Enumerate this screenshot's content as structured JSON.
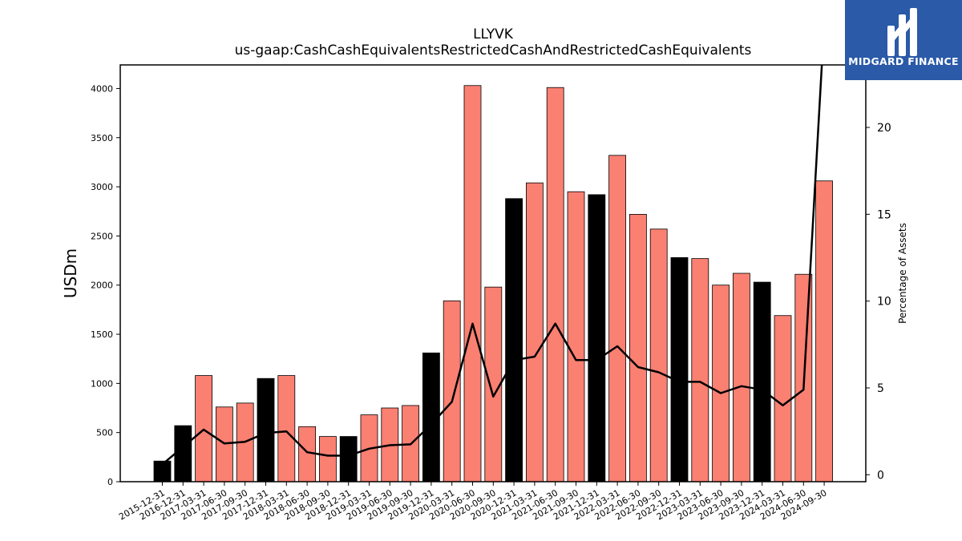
{
  "chart_data": {
    "type": "bar",
    "title": "LLYVK",
    "subtitle": "us-gaap:CashCashEquivalentsRestrictedCashAndRestrictedCashEquivalents",
    "ylabel": "USDm",
    "y2label": "Percentage of Assets",
    "ylim": [
      0,
      4240
    ],
    "y2lim": [
      -0.4,
      23.6
    ],
    "yticks": [
      0,
      500,
      1000,
      1500,
      2000,
      2500,
      3000,
      3500,
      4000
    ],
    "y2ticks": [
      0,
      5,
      10,
      15,
      20
    ],
    "grid": false,
    "categories": [
      "2015-12-31",
      "2016-12-31",
      "2017-03-31",
      "2017-06-30",
      "2017-09-30",
      "2017-12-31",
      "2018-03-31",
      "2018-06-30",
      "2018-09-30",
      "2018-12-31",
      "2019-03-31",
      "2019-06-30",
      "2019-09-30",
      "2019-12-31",
      "2020-03-31",
      "2020-06-30",
      "2020-09-30",
      "2020-12-31",
      "2021-03-31",
      "2021-06-30",
      "2021-09-30",
      "2021-12-31",
      "2022-03-31",
      "2022-06-30",
      "2022-09-30",
      "2022-12-31",
      "2023-03-31",
      "2023-06-30",
      "2023-09-30",
      "2023-12-31",
      "2024-03-31",
      "2024-06-30",
      "2024-09-30"
    ],
    "series": [
      {
        "type": "bar",
        "values": [
          210,
          570,
          1080,
          760,
          800,
          1050,
          1080,
          560,
          460,
          460,
          680,
          750,
          775,
          1310,
          1840,
          4030,
          1980,
          2880,
          3040,
          4010,
          2950,
          2920,
          3320,
          2720,
          2570,
          2280,
          2270,
          2000,
          2120,
          2030,
          1690,
          2110,
          3060
        ],
        "colors": [
          "#000000",
          "#000000",
          "#fa8072",
          "#fa8072",
          "#fa8072",
          "#000000",
          "#fa8072",
          "#fa8072",
          "#fa8072",
          "#000000",
          "#fa8072",
          "#fa8072",
          "#fa8072",
          "#000000",
          "#fa8072",
          "#fa8072",
          "#fa8072",
          "#000000",
          "#fa8072",
          "#fa8072",
          "#fa8072",
          "#000000",
          "#fa8072",
          "#fa8072",
          "#fa8072",
          "#000000",
          "#fa8072",
          "#fa8072",
          "#fa8072",
          "#000000",
          "#fa8072",
          "#fa8072",
          "#fa8072"
        ]
      },
      {
        "type": "line",
        "axis": "right",
        "color": "#000000",
        "values": [
          0.6,
          1.6,
          2.6,
          1.8,
          1.9,
          2.4,
          2.5,
          1.3,
          1.1,
          1.1,
          1.5,
          1.7,
          1.75,
          2.9,
          4.2,
          8.7,
          4.5,
          6.6,
          6.8,
          8.7,
          6.6,
          6.6,
          7.4,
          6.2,
          5.9,
          5.35,
          5.35,
          4.7,
          5.1,
          4.9,
          4.0,
          4.9,
          26.0
        ]
      }
    ]
  },
  "logo": {
    "text": "MIDGARD FINANCE",
    "bg_color": "#2a5aa8"
  }
}
